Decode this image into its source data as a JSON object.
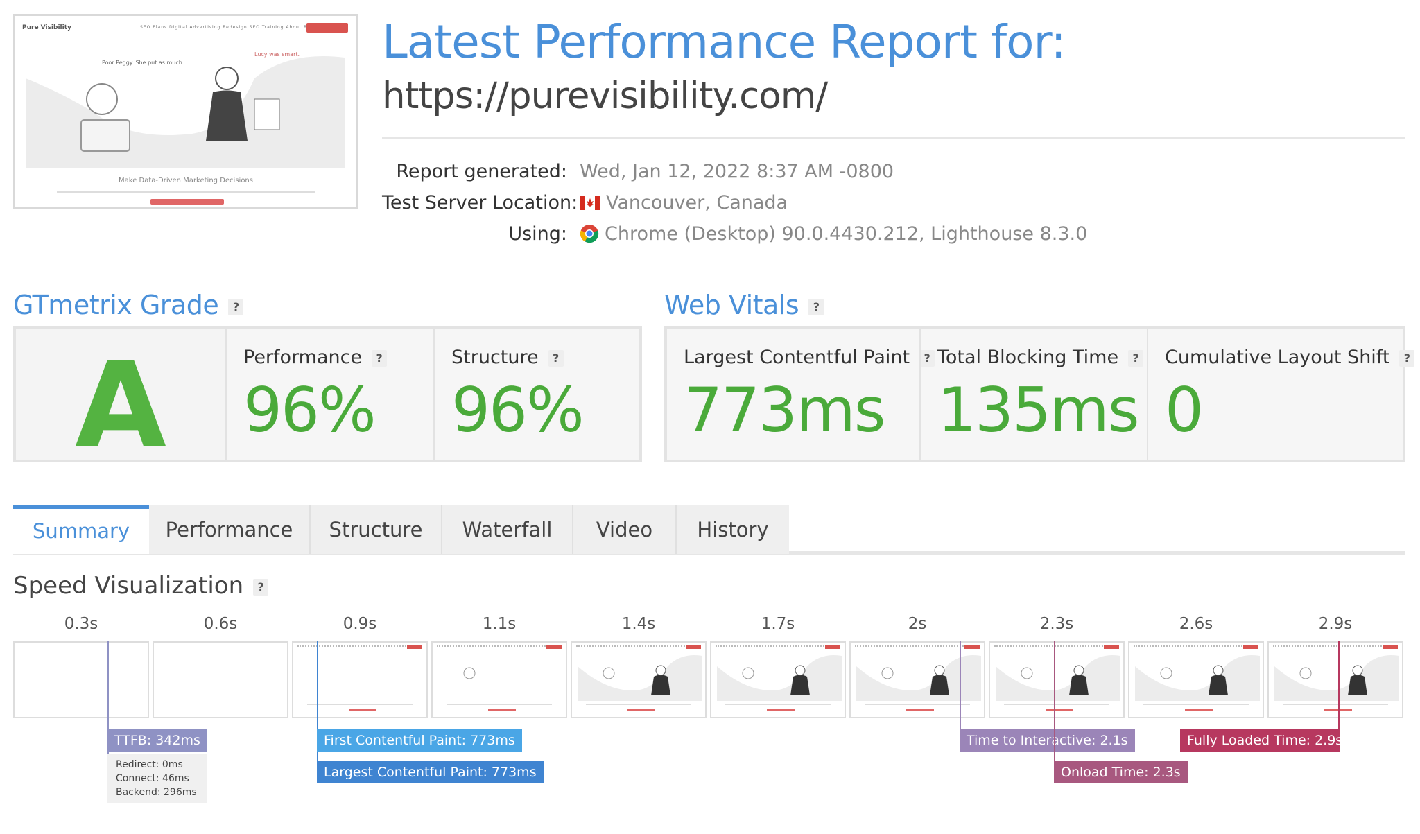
{
  "header": {
    "title": "Latest Performance Report for:",
    "url": "https://purevisibility.com/"
  },
  "thumbnail": {
    "logo_text": "Pure Visibility",
    "nav_text": "SEO Plans  Digital Advertising  Redesign SEO  Training  About  Resources",
    "caption": "Make Data-Driven Marketing Decisions"
  },
  "meta": {
    "report_generated_label": "Report generated:",
    "report_generated_value": "Wed, Jan 12, 2022 8:37 AM -0800",
    "location_label": "Test Server Location:",
    "location_value": "Vancouver, Canada",
    "using_label": "Using:",
    "using_value": "Chrome (Desktop) 90.0.4430.212, Lighthouse 8.3.0"
  },
  "grade": {
    "title": "GTmetrix Grade",
    "help": "?",
    "letter": "A",
    "performance_label": "Performance",
    "performance_value": "96%",
    "structure_label": "Structure",
    "structure_value": "96%"
  },
  "vitals": {
    "title": "Web Vitals",
    "help": "?",
    "lcp_label": "Largest Contentful Paint",
    "lcp_value": "773ms",
    "tbt_label": "Total Blocking Time",
    "tbt_value": "135ms",
    "cls_label": "Cumulative Layout Shift",
    "cls_value": "0"
  },
  "tabs": [
    "Summary",
    "Performance",
    "Structure",
    "Waterfall",
    "Video",
    "History"
  ],
  "active_tab": "Summary",
  "speed": {
    "title": "Speed Visualization",
    "help": "?",
    "ticks": [
      "0.3s",
      "0.6s",
      "0.9s",
      "1.1s",
      "1.4s",
      "1.7s",
      "2s",
      "2.3s",
      "2.6s",
      "2.9s"
    ],
    "ttfb": "TTFB: 342ms",
    "ttfb_redirect": "Redirect: 0ms",
    "ttfb_connect": "Connect: 46ms",
    "ttfb_backend": "Backend: 296ms",
    "fcp": "First Contentful Paint: 773ms",
    "lcp": "Largest Contentful Paint: 773ms",
    "tti": "Time to Interactive: 2.1s",
    "onload": "Onload Time: 2.3s",
    "fully_loaded": "Fully Loaded Time: 2.9s"
  },
  "colors": {
    "accent_blue": "#4a90d9",
    "grade_green": "#54b341",
    "ttfb": "#8f92c4",
    "fcp": "#4aa6e6",
    "lcp": "#3f84d1",
    "tti": "#9b85b8",
    "onload": "#a8587f",
    "fully_loaded": "#b7385f"
  }
}
